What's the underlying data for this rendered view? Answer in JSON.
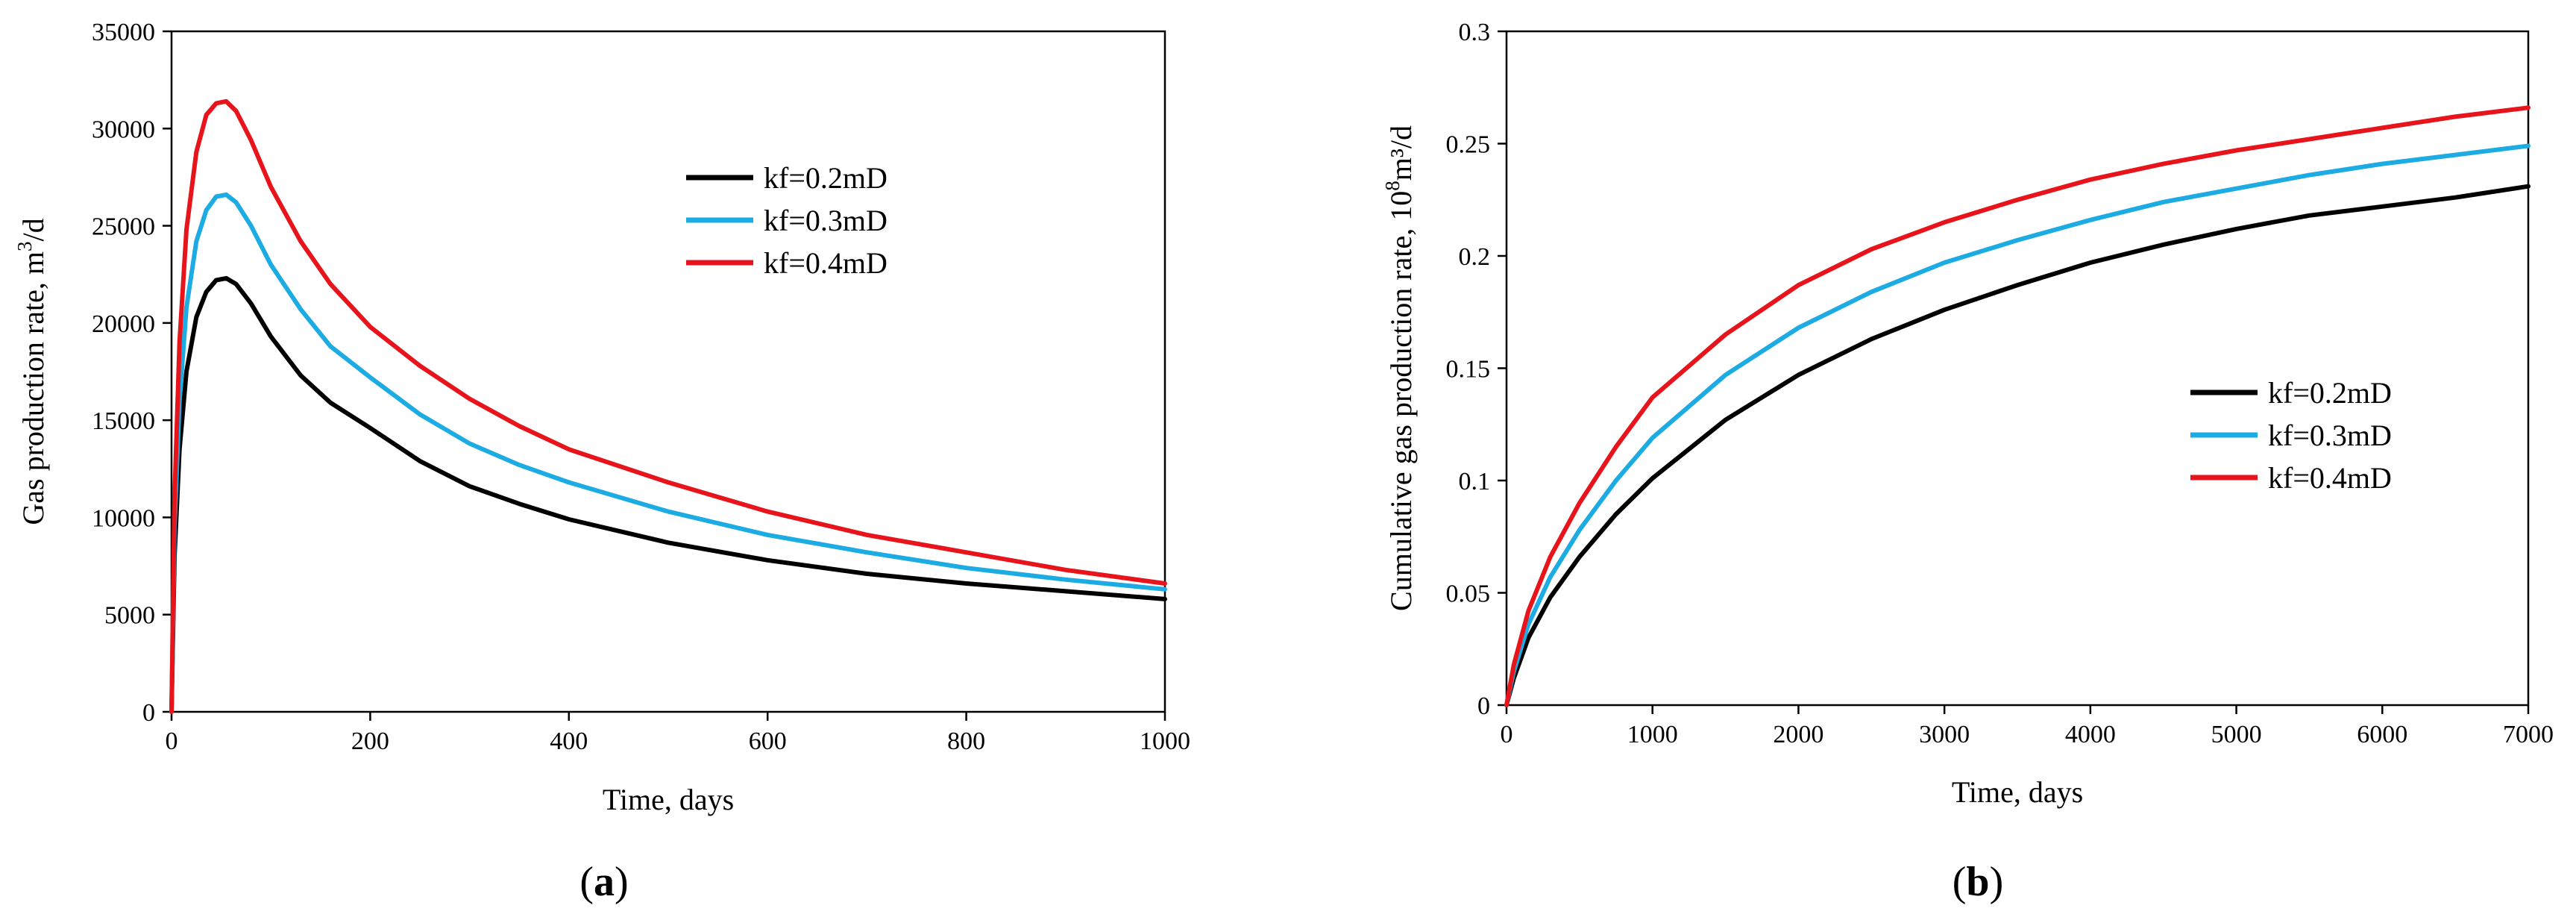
{
  "chart_data": [
    {
      "type": "line",
      "panel_label": "a",
      "xlabel": "Time, days",
      "ylabel_prefix": "Gas production rate, m",
      "ylabel_sup": "3",
      "ylabel_suffix": "/d",
      "xlim": [
        0,
        1000
      ],
      "ylim": [
        0,
        35000
      ],
      "xticks": [
        0,
        200,
        400,
        600,
        800,
        1000
      ],
      "yticks": [
        0,
        5000,
        10000,
        15000,
        20000,
        25000,
        30000,
        35000
      ],
      "legend_position": "top-right",
      "series": [
        {
          "name": "kf=0.2mD",
          "color": "#000000",
          "x": [
            0,
            3,
            8,
            15,
            25,
            35,
            45,
            55,
            65,
            80,
            100,
            130,
            160,
            200,
            250,
            300,
            350,
            400,
            500,
            600,
            700,
            800,
            900,
            1000
          ],
          "y": [
            0,
            8000,
            13500,
            17500,
            20300,
            21600,
            22200,
            22300,
            22000,
            21000,
            19300,
            17300,
            15900,
            14600,
            12900,
            11600,
            10700,
            9900,
            8700,
            7800,
            7100,
            6600,
            6200,
            5800
          ]
        },
        {
          "name": "kf=0.3mD",
          "color": "#1CABE2",
          "x": [
            0,
            3,
            8,
            15,
            25,
            35,
            45,
            55,
            65,
            80,
            100,
            130,
            160,
            200,
            250,
            300,
            350,
            400,
            500,
            600,
            700,
            800,
            900,
            1000
          ],
          "y": [
            0,
            9500,
            16000,
            20800,
            24200,
            25800,
            26500,
            26600,
            26200,
            25000,
            23000,
            20700,
            18800,
            17200,
            15300,
            13800,
            12700,
            11800,
            10300,
            9100,
            8200,
            7400,
            6800,
            6300
          ]
        },
        {
          "name": "kf=0.4mD",
          "color": "#E8141B",
          "x": [
            0,
            3,
            8,
            15,
            25,
            35,
            45,
            55,
            65,
            80,
            100,
            130,
            160,
            200,
            250,
            300,
            350,
            400,
            500,
            600,
            700,
            800,
            900,
            1000
          ],
          "y": [
            0,
            11000,
            19000,
            24800,
            28800,
            30700,
            31300,
            31400,
            30900,
            29400,
            27000,
            24200,
            22000,
            19800,
            17800,
            16100,
            14700,
            13500,
            11800,
            10300,
            9100,
            8200,
            7300,
            6600
          ]
        }
      ]
    },
    {
      "type": "line",
      "panel_label": "b",
      "xlabel": "Time, days",
      "ylabel_prefix": "Cumulative gas production rate, 10",
      "ylabel_sup": "8",
      "ylabel_suffix": "m³/d",
      "xlim": [
        0,
        7000
      ],
      "ylim": [
        0,
        0.3
      ],
      "xticks": [
        0,
        1000,
        2000,
        3000,
        4000,
        5000,
        6000,
        7000
      ],
      "yticks": [
        0,
        0.05,
        0.1,
        0.15,
        0.2,
        0.25,
        0.3
      ],
      "legend_position": "center-right",
      "series": [
        {
          "name": "kf=0.2mD",
          "color": "#000000",
          "x": [
            0,
            50,
            150,
            300,
            500,
            750,
            1000,
            1500,
            2000,
            2500,
            3000,
            3500,
            4000,
            4500,
            5000,
            5500,
            6000,
            6500,
            7000
          ],
          "y": [
            0,
            0.012,
            0.03,
            0.048,
            0.066,
            0.085,
            0.101,
            0.127,
            0.147,
            0.163,
            0.176,
            0.187,
            0.197,
            0.205,
            0.212,
            0.218,
            0.222,
            0.226,
            0.231
          ]
        },
        {
          "name": "kf=0.3mD",
          "color": "#1CABE2",
          "x": [
            0,
            50,
            150,
            300,
            500,
            750,
            1000,
            1500,
            2000,
            2500,
            3000,
            3500,
            4000,
            4500,
            5000,
            5500,
            6000,
            6500,
            7000
          ],
          "y": [
            0,
            0.015,
            0.036,
            0.057,
            0.078,
            0.1,
            0.119,
            0.147,
            0.168,
            0.184,
            0.197,
            0.207,
            0.216,
            0.224,
            0.23,
            0.236,
            0.241,
            0.245,
            0.249
          ]
        },
        {
          "name": "kf=0.4mD",
          "color": "#E8141B",
          "x": [
            0,
            50,
            150,
            300,
            500,
            750,
            1000,
            1500,
            2000,
            2500,
            3000,
            3500,
            4000,
            4500,
            5000,
            5500,
            6000,
            6500,
            7000
          ],
          "y": [
            0,
            0.018,
            0.042,
            0.066,
            0.09,
            0.115,
            0.137,
            0.165,
            0.187,
            0.203,
            0.215,
            0.225,
            0.234,
            0.241,
            0.247,
            0.252,
            0.257,
            0.262,
            0.266
          ]
        }
      ]
    }
  ]
}
